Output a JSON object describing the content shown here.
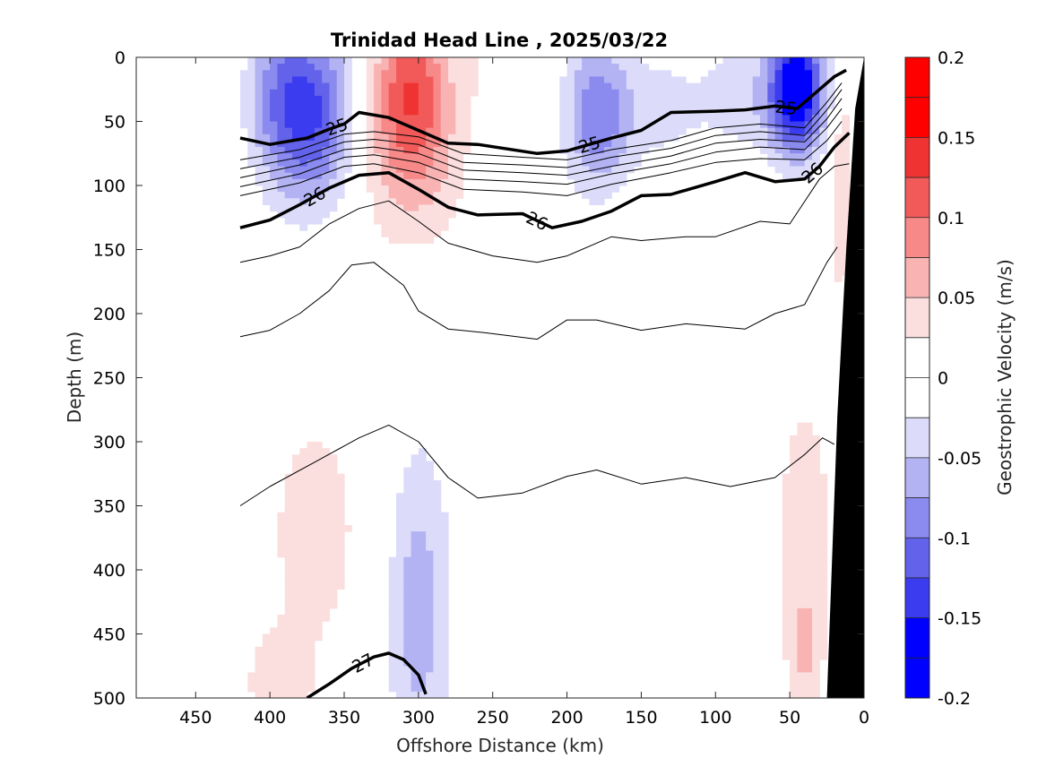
{
  "chart_data": {
    "type": "heatmap",
    "title": "Trinidad Head Line , 2025/03/22",
    "xlabel": "Offshore Distance (km)",
    "ylabel": "Depth (m)",
    "colorbar_label": "Geostrophic Velocity (m/s)",
    "xlim": [
      490,
      0
    ],
    "ylim": [
      0,
      500
    ],
    "x_reversed": true,
    "y_reversed": true,
    "xticks": [
      450,
      400,
      350,
      300,
      250,
      200,
      150,
      100,
      50,
      0
    ],
    "yticks": [
      0,
      50,
      100,
      150,
      200,
      250,
      300,
      350,
      400,
      450,
      500
    ],
    "colorbar_ticks": [
      "0.2",
      "0.15",
      "0.1",
      "0.05",
      "0",
      "-0.05",
      "-0.1",
      "-0.15",
      "-0.2"
    ],
    "colorbar_range": [
      -0.2,
      0.2
    ],
    "colorbar_levels": 16,
    "colors": {
      "pos": [
        "#fbdede",
        "#f9b3b3",
        "#f78989",
        "#f25a5a",
        "#ef3333",
        "#ff0000"
      ],
      "neg": [
        "#dcdcfa",
        "#b3b3f4",
        "#8a8aef",
        "#6262ea",
        "#3b3bef",
        "#0000ff"
      ],
      "bottom": "#000000"
    },
    "data_columns_x_range": [
      420,
      0
    ],
    "velocity_features": [
      {
        "x": 370,
        "z": 45,
        "sx": 28,
        "sz": 70,
        "v": -0.12
      },
      {
        "x": 395,
        "z": 30,
        "sx": 22,
        "sz": 70,
        "v": -0.06
      },
      {
        "x": 305,
        "z": 25,
        "sx": 28,
        "sz": 65,
        "v": 0.12
      },
      {
        "x": 305,
        "z": 100,
        "sx": 40,
        "sz": 60,
        "v": 0.04
      },
      {
        "x": 180,
        "z": 45,
        "sx": 22,
        "sz": 60,
        "v": -0.09
      },
      {
        "x": 140,
        "z": 40,
        "sx": 32,
        "sz": 45,
        "v": -0.035
      },
      {
        "x": 45,
        "z": 25,
        "sx": 18,
        "sz": 50,
        "v": -0.19
      },
      {
        "x": 80,
        "z": 30,
        "sx": 30,
        "sz": 45,
        "v": -0.04
      },
      {
        "x": 15,
        "z": 100,
        "sx": 8,
        "sz": 90,
        "v": 0.05
      },
      {
        "x": 370,
        "z": 370,
        "sx": 40,
        "sz": 120,
        "v": 0.035
      },
      {
        "x": 395,
        "z": 490,
        "sx": 22,
        "sz": 40,
        "v": 0.04
      },
      {
        "x": 300,
        "z": 430,
        "sx": 22,
        "sz": 130,
        "v": -0.065
      },
      {
        "x": 40,
        "z": 380,
        "sx": 22,
        "sz": 140,
        "v": 0.04
      },
      {
        "x": 40,
        "z": 470,
        "sx": 10,
        "sz": 50,
        "v": 0.03
      },
      {
        "x": 265,
        "z": 10,
        "sx": 6,
        "sz": 20,
        "v": 0.03
      }
    ],
    "isopycnals": [
      {
        "label": "25",
        "bold": true,
        "x": [
          420,
          400,
          375,
          360,
          350,
          340,
          320,
          300,
          280,
          260,
          220,
          200,
          170,
          150,
          130,
          100,
          80,
          60,
          45,
          30,
          20,
          12
        ],
        "y": [
          63,
          68,
          63,
          56,
          52,
          43,
          47,
          57,
          67,
          68,
          75,
          73,
          63,
          57,
          43,
          42,
          41,
          38,
          40,
          25,
          15,
          10
        ]
      },
      {
        "label": "",
        "bold": false,
        "x": [
          420,
          380,
          350,
          330,
          300,
          270,
          230,
          200,
          170,
          130,
          100,
          70,
          40,
          25,
          15
        ],
        "y": [
          80,
          72,
          60,
          58,
          62,
          75,
          78,
          80,
          72,
          65,
          55,
          52,
          55,
          35,
          20
        ]
      },
      {
        "label": "",
        "bold": false,
        "x": [
          420,
          380,
          350,
          330,
          300,
          270,
          230,
          200,
          170,
          130,
          100,
          70,
          40,
          25,
          15
        ],
        "y": [
          87,
          78,
          66,
          64,
          68,
          82,
          84,
          86,
          78,
          71,
          61,
          58,
          61,
          41,
          25
        ]
      },
      {
        "label": "",
        "bold": false,
        "x": [
          420,
          380,
          350,
          330,
          300,
          270,
          230,
          200,
          170,
          130,
          100,
          70,
          40,
          25,
          15
        ],
        "y": [
          94,
          84,
          72,
          70,
          75,
          88,
          90,
          92,
          85,
          77,
          67,
          64,
          66,
          48,
          32
        ]
      },
      {
        "label": "",
        "bold": false,
        "x": [
          420,
          380,
          350,
          330,
          300,
          270,
          230,
          200,
          170,
          130,
          100,
          70,
          40,
          25,
          15
        ],
        "y": [
          101,
          91,
          78,
          76,
          82,
          95,
          97,
          99,
          91,
          83,
          74,
          70,
          72,
          55,
          40
        ]
      },
      {
        "label": "",
        "bold": false,
        "x": [
          420,
          380,
          350,
          330,
          300,
          270,
          230,
          200,
          170,
          130,
          100,
          70,
          40,
          25,
          15
        ],
        "y": [
          108,
          98,
          85,
          83,
          90,
          103,
          105,
          108,
          99,
          90,
          82,
          79,
          80,
          65,
          50
        ]
      },
      {
        "label": "26",
        "bold": true,
        "x": [
          420,
          400,
          380,
          360,
          340,
          320,
          300,
          280,
          260,
          230,
          210,
          190,
          170,
          150,
          130,
          100,
          80,
          60,
          40,
          30,
          20,
          10
        ],
        "y": [
          133,
          127,
          115,
          102,
          92,
          90,
          103,
          117,
          123,
          122,
          133,
          128,
          120,
          108,
          107,
          97,
          90,
          97,
          95,
          85,
          70,
          59
        ]
      },
      {
        "label": "",
        "bold": false,
        "x": [
          420,
          400,
          380,
          360,
          340,
          320,
          300,
          280,
          250,
          220,
          200,
          170,
          150,
          120,
          100,
          70,
          50,
          30,
          20,
          10
        ],
        "y": [
          160,
          155,
          148,
          130,
          118,
          112,
          128,
          145,
          155,
          160,
          155,
          140,
          143,
          140,
          140,
          128,
          130,
          95,
          85,
          83
        ]
      },
      {
        "label": "",
        "bold": false,
        "x": [
          420,
          400,
          380,
          360,
          345,
          330,
          310,
          300,
          280,
          255,
          220,
          200,
          180,
          150,
          120,
          100,
          80,
          60,
          40,
          25,
          18
        ],
        "y": [
          218,
          213,
          200,
          182,
          162,
          160,
          178,
          198,
          212,
          215,
          220,
          205,
          205,
          213,
          208,
          210,
          212,
          200,
          193,
          160,
          148
        ]
      },
      {
        "label": "",
        "bold": false,
        "x": [
          420,
          400,
          370,
          340,
          320,
          300,
          280,
          260,
          230,
          200,
          180,
          150,
          120,
          90,
          60,
          40,
          28,
          20
        ],
        "y": [
          350,
          335,
          316,
          297,
          287,
          300,
          328,
          344,
          340,
          327,
          322,
          333,
          328,
          335,
          328,
          310,
          297,
          302
        ]
      },
      {
        "label": "27",
        "bold": true,
        "x": [
          375,
          360,
          345,
          330,
          320,
          310,
          300,
          295
        ],
        "y": [
          500,
          489,
          477,
          468,
          465,
          470,
          482,
          497
        ]
      }
    ],
    "bathymetry_x": [
      25,
      18,
      12,
      6,
      0,
      0
    ],
    "bathymetry_y": [
      500,
      280,
      150,
      40,
      0,
      500
    ]
  }
}
